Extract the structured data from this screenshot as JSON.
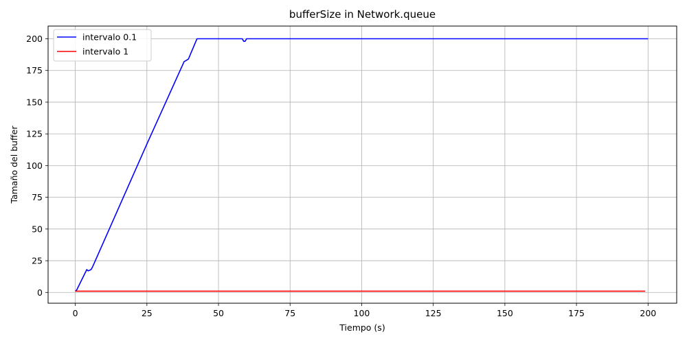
{
  "chart_data": {
    "type": "line",
    "title": "bufferSize in Network.queue",
    "xlabel": "Tiempo (s)",
    "ylabel": "Tamaño del buffer",
    "xlim": [
      -9.5,
      210
    ],
    "ylim": [
      -8.5,
      210
    ],
    "xticks": [
      0,
      25,
      50,
      75,
      100,
      125,
      150,
      175,
      200
    ],
    "yticks": [
      0,
      25,
      50,
      75,
      100,
      125,
      150,
      175,
      200
    ],
    "grid": true,
    "legend_position": "top-left",
    "series": [
      {
        "name": "intervalo 0.1",
        "color": "#0000ff",
        "x": [
          0,
          0.5,
          4,
          4.5,
          5.5,
          6,
          25,
          38,
          38.8,
          39.5,
          42.5,
          58.3,
          58.8,
          59.3,
          59.8,
          200
        ],
        "y": [
          1,
          2,
          18,
          17,
          18,
          20,
          117,
          182,
          183,
          184,
          200,
          200,
          198,
          198,
          200,
          200
        ]
      },
      {
        "name": "intervalo 1",
        "color": "#ff0000",
        "x": [
          0,
          199
        ],
        "y": [
          1,
          1
        ]
      }
    ]
  }
}
